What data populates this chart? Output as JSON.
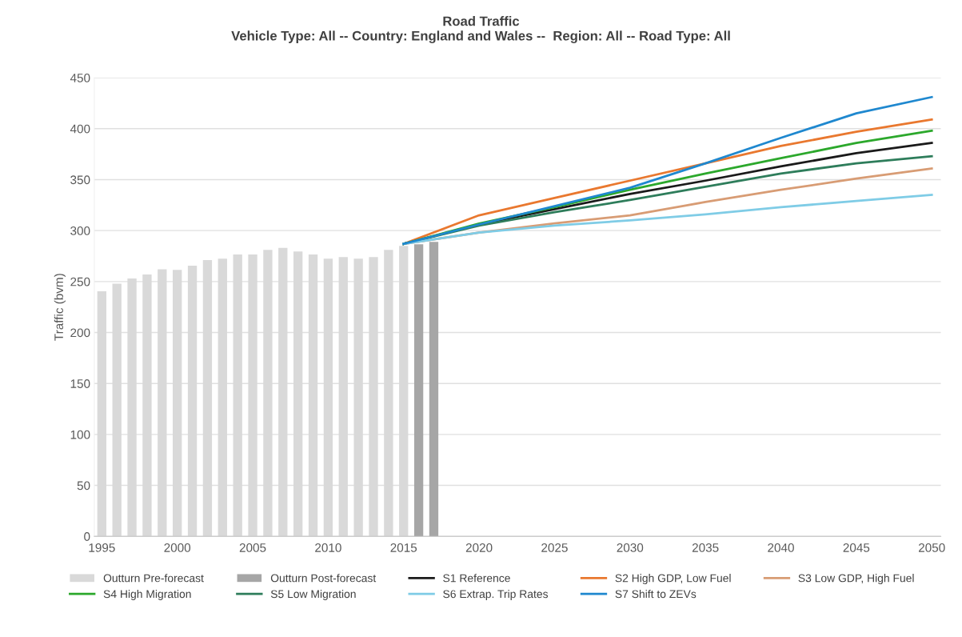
{
  "chart_data": {
    "type": "line",
    "title": "Road Traffic",
    "subtitle": "Vehicle Type: All -- Country: England and Wales --  Region: All -- Road Type: All",
    "ylabel": "Traffic (bvm)",
    "xlim": [
      1994.5,
      2050.6
    ],
    "xticks": [
      1995,
      2000,
      2005,
      2010,
      2015,
      2020,
      2025,
      2030,
      2035,
      2040,
      2045,
      2050
    ],
    "ylim": [
      0,
      450
    ],
    "yticks": [
      0,
      50,
      100,
      150,
      200,
      250,
      300,
      350,
      400,
      450
    ],
    "grid": "y",
    "legend": "bottom",
    "series": [
      {
        "name": "Outturn Pre-forecast",
        "type": "bar",
        "color": "#d9d9d9",
        "x": [
          1995,
          1996,
          1997,
          1998,
          1999,
          2000,
          2001,
          2002,
          2003,
          2004,
          2005,
          2006,
          2007,
          2008,
          2009,
          2010,
          2011,
          2012,
          2013,
          2014,
          2015
        ],
        "values": [
          240.5,
          248,
          253,
          257,
          262,
          261.5,
          265.5,
          271,
          272.5,
          276.5,
          276.5,
          281,
          283,
          279.5,
          276.5,
          272.5,
          274,
          272.5,
          274,
          281,
          285
        ]
      },
      {
        "name": "Outturn Post-forecast",
        "type": "bar",
        "color": "#a6a6a6",
        "x": [
          2016,
          2017
        ],
        "values": [
          286.5,
          289
        ]
      },
      {
        "name": "S1 Reference",
        "color": "#1a1a1a",
        "x": [
          2015,
          2020,
          2025,
          2030,
          2035,
          2040,
          2045,
          2050
        ],
        "values": [
          287,
          306,
          321,
          336,
          349,
          363,
          376,
          386
        ]
      },
      {
        "name": "S2 High GDP, Low Fuel",
        "color": "#e9782f",
        "x": [
          2015,
          2020,
          2025,
          2030,
          2035,
          2040,
          2045,
          2050
        ],
        "values": [
          287,
          315,
          332,
          349,
          366,
          383,
          397,
          409
        ]
      },
      {
        "name": "S3 Low GDP, High Fuel",
        "color": "#d89c74",
        "x": [
          2015,
          2020,
          2025,
          2030,
          2035,
          2040,
          2045,
          2050
        ],
        "values": [
          287,
          298,
          307,
          315,
          328,
          340,
          351,
          361
        ]
      },
      {
        "name": "S4 High Migration",
        "color": "#2ca82c",
        "x": [
          2015,
          2020,
          2025,
          2030,
          2035,
          2040,
          2045,
          2050
        ],
        "values": [
          287,
          307,
          323,
          340,
          356,
          371,
          386,
          398
        ]
      },
      {
        "name": "S5 Low Migration",
        "color": "#2e7d5b",
        "x": [
          2015,
          2020,
          2025,
          2030,
          2035,
          2040,
          2045,
          2050
        ],
        "values": [
          287,
          305,
          318,
          330,
          343,
          356,
          366,
          373
        ]
      },
      {
        "name": "S6 Extrap. Trip Rates",
        "color": "#7fcce6",
        "x": [
          2015,
          2020,
          2025,
          2030,
          2035,
          2040,
          2045,
          2050
        ],
        "values": [
          287,
          298,
          305,
          310,
          316,
          323,
          329,
          335
        ]
      },
      {
        "name": "S7 Shift to ZEVs",
        "color": "#1f88cf",
        "x": [
          2015,
          2020,
          2025,
          2030,
          2035,
          2040,
          2045,
          2050
        ],
        "values": [
          287,
          306,
          324,
          342,
          366,
          391,
          415,
          431
        ]
      }
    ]
  }
}
